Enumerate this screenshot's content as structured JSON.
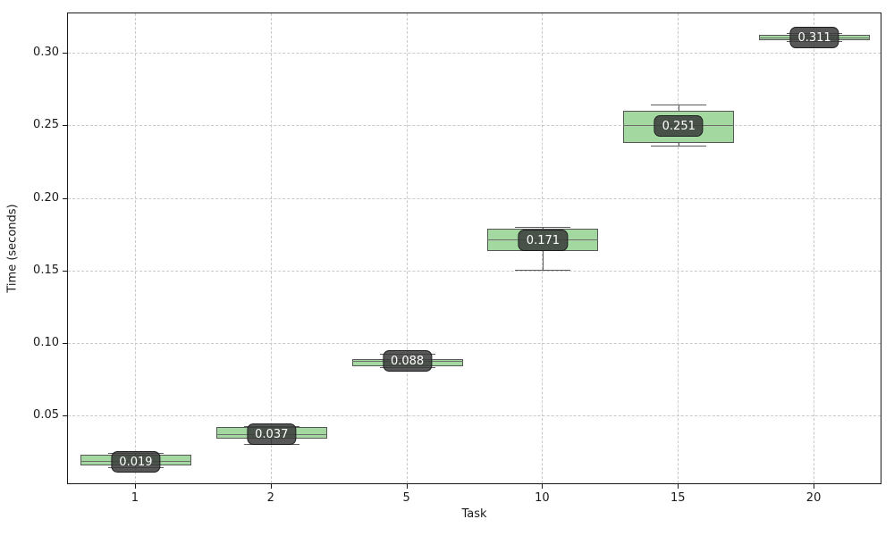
{
  "chart_data": {
    "type": "boxplot",
    "title": "",
    "xlabel": "Task",
    "ylabel": "Time (seconds)",
    "categories": [
      "1",
      "2",
      "5",
      "10",
      "15",
      "20"
    ],
    "ylim": [
      0.0027,
      0.3278
    ],
    "yticks": [
      0.05,
      0.1,
      0.15,
      0.2,
      0.25,
      0.3
    ],
    "grid": "dashed-both-axes",
    "legend": "none",
    "colors": {
      "box_fill": "#a3d9a0",
      "box_edge": "#565656",
      "median": "#6e6e6e",
      "whisker": "#5a5a5a",
      "annotation_bg": "#3a3a3a",
      "annotation_text": "#ffffff",
      "gridline": "#c9c9c9",
      "spine": "#1a1a1a"
    },
    "boxes": [
      {
        "category": "1",
        "label": "0.019",
        "whisker_low": 0.015,
        "q1": 0.0162,
        "median": 0.019,
        "q3": 0.0236,
        "whisker_high": 0.0248
      },
      {
        "category": "2",
        "label": "0.037",
        "whisker_low": 0.0311,
        "q1": 0.0347,
        "median": 0.0375,
        "q3": 0.0427,
        "whisker_high": 0.0433
      },
      {
        "category": "5",
        "label": "0.088",
        "whisker_low": 0.084,
        "q1": 0.0848,
        "median": 0.088,
        "q3": 0.0897,
        "whisker_high": 0.0933
      },
      {
        "category": "10",
        "label": "0.171",
        "whisker_low": 0.151,
        "q1": 0.164,
        "median": 0.1715,
        "q3": 0.1795,
        "whisker_high": 0.1808
      },
      {
        "category": "15",
        "label": "0.251",
        "whisker_low": 0.2365,
        "q1": 0.2385,
        "median": 0.2505,
        "q3": 0.2608,
        "whisker_high": 0.2648
      },
      {
        "category": "20",
        "label": "0.311",
        "whisker_low": 0.3086,
        "q1": 0.3096,
        "median": 0.311,
        "q3": 0.313,
        "whisker_high": 0.314
      }
    ]
  }
}
